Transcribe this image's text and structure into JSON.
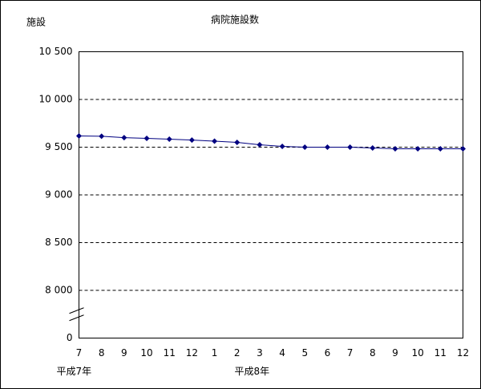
{
  "chart_data": {
    "type": "line",
    "title": "病院施設数",
    "y_label": "施設",
    "categories": [
      "7",
      "8",
      "9",
      "10",
      "11",
      "12",
      "1",
      "2",
      "3",
      "4",
      "5",
      "6",
      "7",
      "8",
      "9",
      "10",
      "11",
      "12"
    ],
    "x_groups": [
      {
        "label": "平成7年",
        "start": 0
      },
      {
        "label": "平成8年",
        "start": 6
      }
    ],
    "series": [
      {
        "name": "病院施設数",
        "color": "#000080",
        "values": [
          9618,
          9615,
          9600,
          9592,
          9584,
          9575,
          9563,
          9550,
          9525,
          9508,
          9500,
          9500,
          9500,
          9492,
          9483,
          9483,
          9483,
          9483
        ]
      }
    ],
    "ylim": [
      0,
      10500
    ],
    "yticks": [
      0,
      {
        "value": 8000,
        "label": "8 000"
      },
      {
        "value": 8500,
        "label": "8 500"
      },
      {
        "value": 9000,
        "label": "9 000"
      },
      {
        "value": 9500,
        "label": "9 500"
      },
      {
        "value": 10000,
        "label": "10 000"
      },
      {
        "value": 10500,
        "label": "10 500"
      }
    ],
    "axis_break": true,
    "grid": true,
    "legend": false
  }
}
